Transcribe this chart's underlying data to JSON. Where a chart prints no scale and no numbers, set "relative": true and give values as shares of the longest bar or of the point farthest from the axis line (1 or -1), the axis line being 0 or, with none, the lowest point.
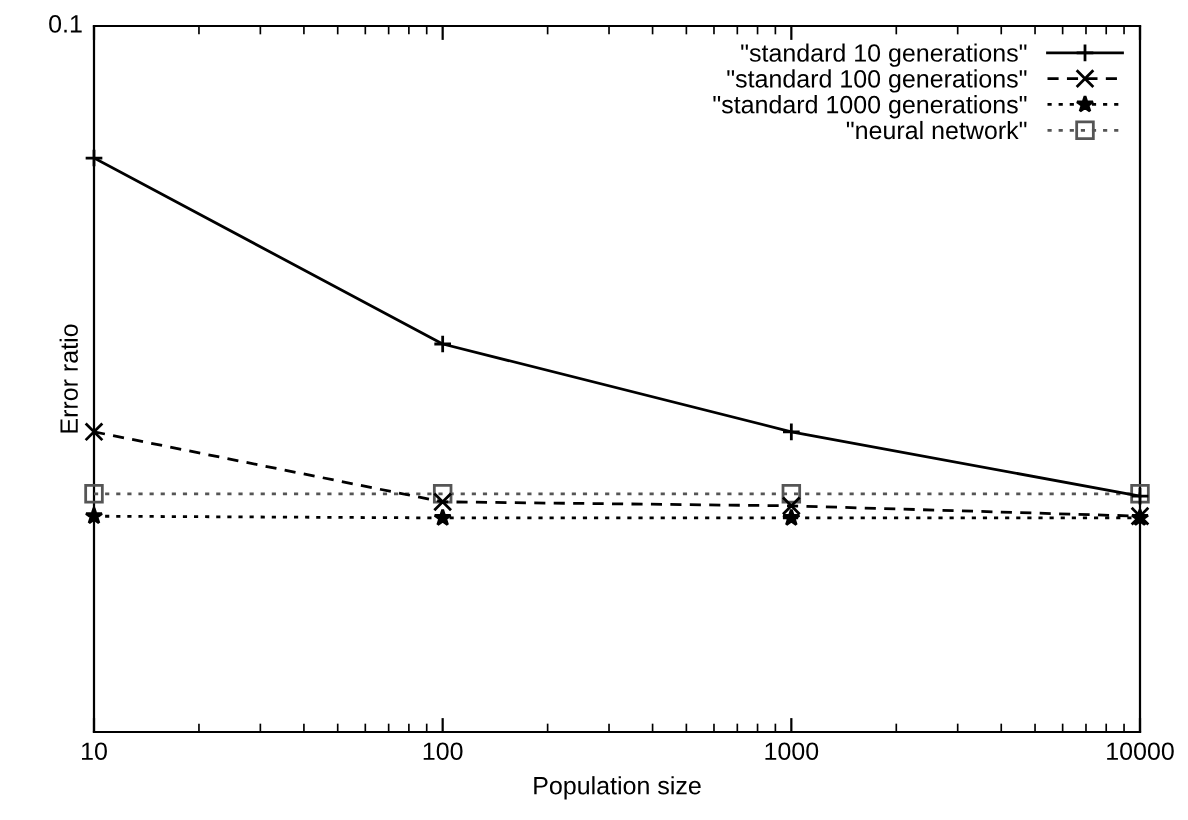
{
  "chart_data": {
    "type": "line",
    "xlabel": "Population size",
    "ylabel": "Error ratio",
    "x": [
      10,
      100,
      1000,
      10000
    ],
    "series": [
      {
        "name": "\"standard 10 generations\"",
        "color": "#000000",
        "values": [
          1,
          0.676,
          0.523,
          0.411
        ],
        "line_style": "solid",
        "marker": "cross"
      },
      {
        "name": "\"standard 100 generations\"",
        "color": "#000000",
        "values": [
          0.523,
          0.401,
          0.394,
          0.376
        ],
        "line_style": "dashed",
        "marker": "x"
      },
      {
        "name": "\"standard 1000 generations\"",
        "color": "#000000",
        "values": [
          0.376,
          0.373,
          0.373,
          0.373
        ],
        "line_style": "dotted",
        "marker": "star"
      },
      {
        "name": "\"neural network\"",
        "color": "#555555",
        "values": [
          0.415,
          0.415,
          0.415,
          0.415
        ],
        "line_style": "dotted",
        "marker": "square"
      }
    ],
    "relative": true,
    "annotations": [
      "0.1"
    ],
    "log": "x",
    "xlim": [
      10,
      10000
    ],
    "xticks": [
      10,
      100,
      1000,
      10000
    ],
    "grid": false,
    "legend": "top right"
  }
}
